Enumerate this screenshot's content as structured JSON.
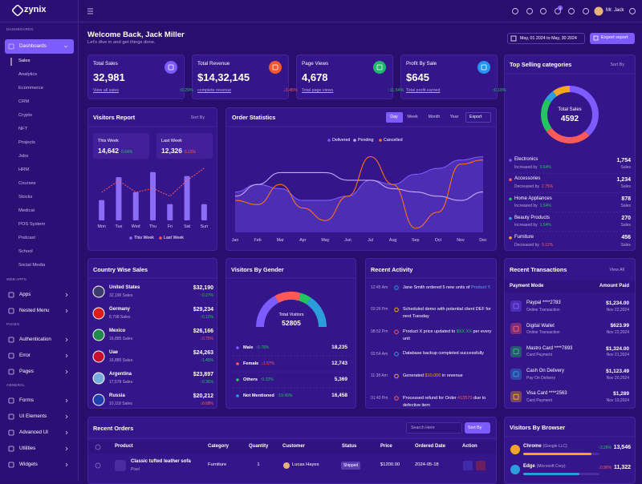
{
  "brand": "zynix",
  "topbar": {
    "user": "Mr. Jack",
    "badge": "5"
  },
  "sidebar": [
    {
      "title": "DASHBOARDS",
      "items": [
        {
          "label": "Dashboards",
          "children": [
            "Sales",
            "Analytics",
            "Ecommerce",
            "CRM",
            "Crypto",
            "NFT",
            "Projects",
            "Jobs",
            "HRM",
            "Courses",
            "Stocks",
            "Medical",
            "POS System",
            "Podcast",
            "School",
            "Social Media"
          ]
        }
      ]
    },
    {
      "title": "WEB APPS",
      "items": [
        {
          "label": "Apps"
        },
        {
          "label": "Nested Menu"
        }
      ]
    },
    {
      "title": "PAGES",
      "items": [
        {
          "label": "Authentication"
        },
        {
          "label": "Error"
        },
        {
          "label": "Pages"
        }
      ]
    },
    {
      "title": "GENERAL",
      "items": [
        {
          "label": "Forms"
        },
        {
          "label": "UI Elements"
        },
        {
          "label": "Advanced UI"
        },
        {
          "label": "Utilities"
        },
        {
          "label": "Widgets"
        }
      ]
    }
  ],
  "header": {
    "title": "Welcome Back, Jack Miller",
    "subtitle": "Let's dive in and get things done.",
    "date_range": "May, 01 2024 to May, 30 2024",
    "export": "Export report"
  },
  "stats": [
    {
      "title": "Total Sales",
      "value": "32,981",
      "link": "View all sales",
      "change": "↑0.29%",
      "color": "#7c5cff"
    },
    {
      "title": "Total Revenue",
      "value": "$14,32,145",
      "link": "complete revenue",
      "change": "↓3.45%",
      "color": "#f2582f"
    },
    {
      "title": "Page Views",
      "value": "4,678",
      "link": "Total page views",
      "change": "↑11.54%",
      "color": "#1fb86a"
    },
    {
      "title": "Profit By Sale",
      "value": "$645",
      "link": "Total profit earned",
      "change": "↑0.18%",
      "color": "#2196f3"
    }
  ],
  "visitors_report": {
    "title": "Visitors Report",
    "sort": "Sort By",
    "summary": [
      {
        "label": "This Week",
        "value": "14,642",
        "change": "0.64%",
        "change_color": "#22c55e"
      },
      {
        "label": "Last Week",
        "value": "12,326",
        "change": "5.11%",
        "change_color": "#ff5a5a"
      }
    ],
    "chart": {
      "type": "bar",
      "categories": [
        "Mon",
        "Tue",
        "Wed",
        "Thu",
        "Fri",
        "Sat",
        "Sun"
      ],
      "ylim": [
        0,
        100
      ],
      "series": [
        {
          "name": "This Week",
          "color": "#8b6cf6",
          "values": [
            36,
            77,
            50,
            86,
            29,
            79,
            29
          ]
        },
        {
          "name": "Last Week",
          "color": "#ff5a5a",
          "type": "line",
          "values": [
            50,
            71,
            50,
            57,
            43,
            71,
            93
          ]
        }
      ]
    }
  },
  "order_statistics": {
    "title": "Order Statistics",
    "tabs": [
      "Day",
      "Week",
      "Month",
      "Year"
    ],
    "active_tab": 0,
    "export": "Export",
    "chart": {
      "type": "line",
      "categories": [
        "Jan",
        "Feb",
        "Mar",
        "Apr",
        "May",
        "Jun",
        "Jul",
        "Aug",
        "Sep",
        "Oct",
        "Nov",
        "Dec"
      ],
      "ylim": [
        0,
        100
      ],
      "series": [
        {
          "name": "Delivered",
          "color": "#7c5cff",
          "area": true,
          "values": [
            48,
            57,
            52,
            38,
            38,
            43,
            62,
            57,
            69,
            76,
            86,
            90
          ]
        },
        {
          "name": "Pending",
          "color": "#c9a8ff",
          "values": [
            43,
            57,
            71,
            71,
            71,
            62,
            62,
            52,
            48,
            43,
            38,
            48
          ]
        },
        {
          "name": "Cancelled",
          "color": "#f97316",
          "values": [
            38,
            33,
            57,
            29,
            14,
            43,
            90,
            57,
            5,
            24,
            81,
            86
          ]
        }
      ]
    }
  },
  "top_selling": {
    "title": "Top Selling categories",
    "sort": "Sort By",
    "total_label": "Total Sales",
    "total": 4592,
    "items": [
      {
        "name": "Electronics",
        "change_text": "Increased by",
        "change": "0.64%",
        "sales": 1754,
        "sales_label": "1,754",
        "unit": "Sales",
        "color": "#7c5cff",
        "change_color": "#22c55e"
      },
      {
        "name": "Accessories",
        "change_text": "Decreased by",
        "change": "2.75%",
        "sales": 1234,
        "sales_label": "1,234",
        "unit": "Sales",
        "color": "#ff5a5a",
        "change_color": "#ff5a5a"
      },
      {
        "name": "Home Appliances",
        "change_text": "Increased by",
        "change": "1.54%",
        "sales": 878,
        "sales_label": "878",
        "unit": "Sales",
        "color": "#22c55e",
        "change_color": "#22c55e"
      },
      {
        "name": "Beauty Products",
        "change_text": "Increased by",
        "change": "1.54%",
        "sales": 270,
        "sales_label": "270",
        "unit": "Sales",
        "color": "#2d9cdb",
        "change_color": "#22c55e"
      },
      {
        "name": "Furniture",
        "change_text": "Decreased by",
        "change": "0.12%",
        "sales": 456,
        "sales_label": "456",
        "unit": "Sales",
        "color": "#f5a524",
        "change_color": "#ff5a5a"
      }
    ]
  },
  "country_sales": {
    "title": "Country Wise Sales",
    "rows": [
      {
        "name": "United States",
        "sales": "32,190 Sales",
        "amount": "$32,190",
        "change": "↑0.27%",
        "flag": "#3c3b6e"
      },
      {
        "name": "Germany",
        "sales": "8,798 Sales",
        "amount": "$29,234",
        "change": "↑0.12%",
        "flag": "#dd1c1c"
      },
      {
        "name": "Mexico",
        "sales": "16,885 Sales",
        "amount": "$26,166",
        "change": "↓0.75%",
        "flag": "#1f8a4c"
      },
      {
        "name": "Uae",
        "sales": "16,885 Sales",
        "amount": "$24,263",
        "change": "↑1.45%",
        "flag": "#c8102e"
      },
      {
        "name": "Argentina",
        "sales": "17,578 Sales",
        "amount": "$23,897",
        "change": "↑0.36%",
        "flag": "#74acdf"
      },
      {
        "name": "Russia",
        "sales": "10,118 Sales",
        "amount": "$20,212",
        "change": "↓0.68%",
        "flag": "#1c3faa"
      }
    ]
  },
  "gender": {
    "title": "Visitors By Gender",
    "total_label": "Total Visitors",
    "total": 52805,
    "items": [
      {
        "name": "Male",
        "change": "↑0.78%",
        "count": 18235,
        "count_label": "18,235",
        "color": "#7c5cff"
      },
      {
        "name": "Female",
        "change": "↓1.57%",
        "count": 12743,
        "count_label": "12,743",
        "color": "#ff5a5a"
      },
      {
        "name": "Others",
        "change": "↑0.32%",
        "count": 5369,
        "count_label": "5,369",
        "color": "#22c55e"
      },
      {
        "name": "Not Mentioned",
        "change": "↑19.45%",
        "count": 16458,
        "count_label": "16,458",
        "color": "#2d9cdb"
      }
    ]
  },
  "activity": {
    "title": "Recent Activity",
    "items": [
      {
        "time": "12:45 Am",
        "parts": [
          "Jane Smith ordered 5 new units of ",
          "Product Y."
        ],
        "color": "#2d9cdb",
        "highlight_color": "#4ea8ff"
      },
      {
        "time": "03:26 Pm",
        "parts": [
          "Scheduled demo with potential client DEF for next Tuesday"
        ],
        "color": "#f5a524",
        "highlight_color": "#f5a524"
      },
      {
        "time": "08:52 Pm",
        "parts": [
          "Product X price updated to ",
          "$XX.XX",
          " per every unit"
        ],
        "color": "#ff5a5a",
        "highlight_color": "#22c55e"
      },
      {
        "time": "02:54 Am",
        "parts": [
          "Database backup completed successfully"
        ],
        "color": "#2d9cdb",
        "highlight_color": "#2d9cdb"
      },
      {
        "time": "11:38 Am",
        "parts": [
          "Generated ",
          "$10,000",
          " in revenue"
        ],
        "color": "#f5a524",
        "highlight_color": "#f5a524"
      },
      {
        "time": "01:42 Pm",
        "parts": [
          "Processed refund for Order ",
          "#13579",
          " due to defective item"
        ],
        "color": "#ff5a5a",
        "highlight_color": "#ff5a5a"
      }
    ]
  },
  "transactions": {
    "title": "Recent Transactions",
    "view_all": "View All",
    "columns": [
      "Payment Mode",
      "Amount Paid"
    ],
    "rows": [
      {
        "name": "Paypal ****2783",
        "type": "Online Transaction",
        "amount": "$1,234.00",
        "date": "Nov 22,2024",
        "color": "#7c5cff"
      },
      {
        "name": "Digital Wallet",
        "type": "Online Transaction",
        "amount": "$623.99",
        "date": "Nov 22,2024",
        "color": "#ff5a5a"
      },
      {
        "name": "Mastro Card ****7893",
        "type": "Card Payment",
        "amount": "$1,324.00",
        "date": "Nov 21,2024",
        "color": "#22c55e"
      },
      {
        "name": "Cash On Delivery",
        "type": "Pay On Delivery",
        "amount": "$1,123.49",
        "date": "Nov 20,2024",
        "color": "#2d9cdb"
      },
      {
        "name": "Visa Card ****2563",
        "type": "Card Payment",
        "amount": "$1,289",
        "date": "Nov 19,2024",
        "color": "#f5a524"
      }
    ]
  },
  "recent_orders": {
    "title": "Recent Orders",
    "search": "Search Here",
    "sort": "Sort By",
    "columns": [
      "Product",
      "Category",
      "Quantity",
      "Customer",
      "Status",
      "Price",
      "Ordered Date",
      "Action"
    ],
    "rows": [
      {
        "product": "Classic tufted leather sofa",
        "brand": "Pixel",
        "category": "Furniture",
        "quantity": "1",
        "customer": "Lucas Hayes",
        "status": "Shipped",
        "price": "$1200.00",
        "date": "2024-05-18"
      }
    ]
  },
  "browsers": {
    "title": "Visitors By Browser",
    "items": [
      {
        "name": "Chrome",
        "company": "(Google LLC)",
        "change": "↑3.26%",
        "value": "13,546",
        "color": "#f5a524"
      },
      {
        "name": "Edge",
        "company": "(Microsoft Corp)",
        "change": "↓0.96%",
        "value": "11,322",
        "color": "#2d9cdb"
      }
    ]
  }
}
